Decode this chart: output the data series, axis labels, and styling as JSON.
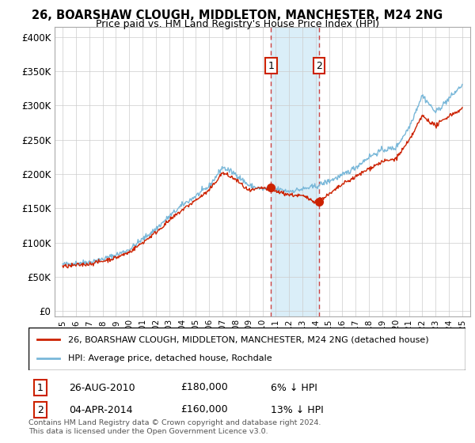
{
  "title1": "26, BOARSHAW CLOUGH, MIDDLETON, MANCHESTER, M24 2NG",
  "title2": "Price paid vs. HM Land Registry's House Price Index (HPI)",
  "yticks": [
    0,
    50000,
    100000,
    150000,
    200000,
    250000,
    300000,
    350000,
    400000
  ],
  "ytick_labels": [
    "£0",
    "£50K",
    "£100K",
    "£150K",
    "£200K",
    "£250K",
    "£300K",
    "£350K",
    "£400K"
  ],
  "ylim": [
    -8000,
    415000
  ],
  "hpi_color": "#7ab8d9",
  "price_color": "#cc2200",
  "sale1_x": 2010.65,
  "sale1_price": 180000,
  "sale2_x": 2014.25,
  "sale2_price": 160000,
  "vline_color": "#cc4444",
  "shaded_color": "#daeef8",
  "legend_line1": "26, BOARSHAW CLOUGH, MIDDLETON, MANCHESTER, M24 2NG (detached house)",
  "legend_line2": "HPI: Average price, detached house, Rochdale",
  "sale1_date": "26-AUG-2010",
  "sale1_pct": "6% ↓ HPI",
  "sale2_date": "04-APR-2014",
  "sale2_pct": "13% ↓ HPI",
  "footer1": "Contains HM Land Registry data © Crown copyright and database right 2024.",
  "footer2": "This data is licensed under the Open Government Licence v3.0."
}
